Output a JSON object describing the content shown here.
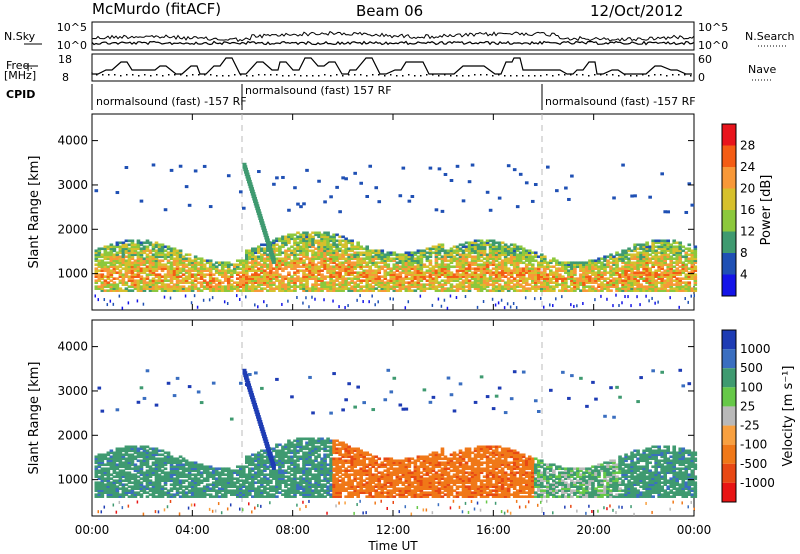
{
  "header": {
    "station": "McMurdo (fitACF)",
    "beam": "Beam 06",
    "date": "12/Oct/2012"
  },
  "top_panels": {
    "nsky_label": "N.Sky",
    "nsearch_label": "N.Search",
    "noise_ticks": [
      "10^5",
      "10^0"
    ],
    "freq_label_1": "Freq.",
    "freq_label_2": "[MHz]",
    "freq_ticks": [
      "18",
      "8"
    ],
    "nave_label": "Nave",
    "nave_ticks": [
      "60",
      "0"
    ],
    "cpid_label": "CPID",
    "cpid_segments": [
      {
        "text": "normalsound (fast) -157 RF"
      },
      {
        "text": "normalsound (fast) 157 RF"
      },
      {
        "text": "normalsound (fast) -157 RF"
      }
    ]
  },
  "chart_data": [
    {
      "type": "heatmap",
      "panel": "power",
      "ylabel": "Slant Range [km]",
      "ylim": [
        180,
        4600
      ],
      "yticks": [
        1000,
        2000,
        3000,
        4000
      ],
      "x_ticks": [
        "00:00",
        "04:00",
        "08:00",
        "12:00",
        "16:00",
        "20:00",
        "00:00"
      ],
      "colorbar_label": "Power [dB]",
      "colorbar_ticks": [
        "28",
        "24",
        "20",
        "16",
        "12",
        "8",
        "4"
      ],
      "colorbar_colors": [
        "#e8141c",
        "#f45c14",
        "#f89838",
        "#d6c02c",
        "#8cc83c",
        "#3f9a70",
        "#1f50b4",
        "#1414e8"
      ]
    },
    {
      "type": "heatmap",
      "panel": "velocity",
      "ylabel": "Slant Range [km]",
      "ylim": [
        180,
        4600
      ],
      "yticks": [
        1000,
        2000,
        3000,
        4000
      ],
      "x_ticks": [
        "00:00",
        "04:00",
        "08:00",
        "12:00",
        "16:00",
        "20:00",
        "00:00"
      ],
      "xlabel": "Time UT",
      "colorbar_label": "Velocity [m s⁻¹]",
      "colorbar_ticks": [
        "1000",
        "500",
        "100",
        "25",
        "-25",
        "-100",
        "-500",
        "-1000"
      ],
      "colorbar_colors": [
        "#1e3cb4",
        "#3a6ec0",
        "#3f9a70",
        "#66c848",
        "#b9b9b9",
        "#f8a040",
        "#f07818",
        "#e84814",
        "#e81414"
      ]
    }
  ]
}
